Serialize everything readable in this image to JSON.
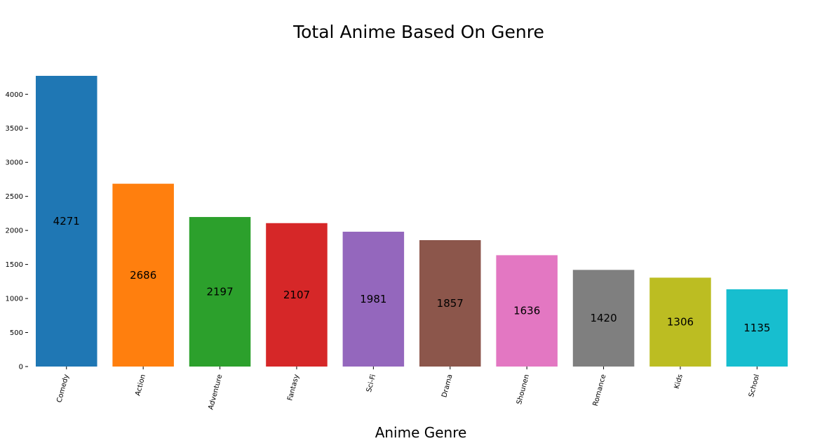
{
  "chart_data": {
    "type": "bar",
    "title": "Total Anime Based On Genre",
    "xlabel": "Anime Genre",
    "ylabel": "",
    "categories": [
      "Comedy",
      "Action",
      "Adventure",
      "Fantasy",
      "Sci-Fi",
      "Drama",
      "Shounen",
      "Romance",
      "Kids",
      "School"
    ],
    "values": [
      4271,
      2686,
      2197,
      2107,
      1981,
      1857,
      1636,
      1420,
      1306,
      1135
    ],
    "colors": [
      "#1f77b4",
      "#ff7f0e",
      "#2ca02c",
      "#d62728",
      "#9467bd",
      "#8c564b",
      "#e377c2",
      "#7f7f7f",
      "#bcbd22",
      "#17becf"
    ],
    "ylim": [
      0,
      4271
    ],
    "yticks": [
      0,
      500,
      1000,
      1500,
      2000,
      2500,
      3000,
      3500,
      4000
    ],
    "xtick_rotation": 75,
    "grid": false,
    "legend": "none",
    "data_labels": "inside-bar-middle"
  }
}
